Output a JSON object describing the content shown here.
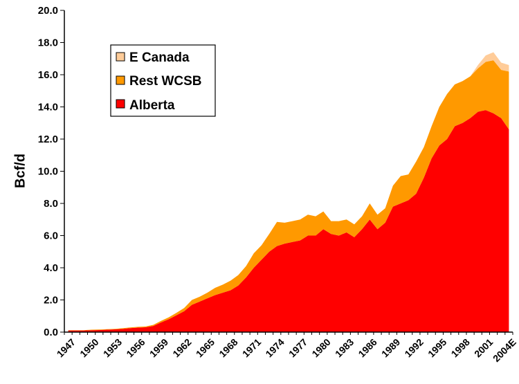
{
  "chart_data": {
    "type": "area",
    "stacked": true,
    "title": "",
    "xlabel": "",
    "ylabel": "Bcf/d",
    "ylim": [
      0,
      20
    ],
    "y_ticks": [
      "0.0",
      "2.0",
      "4.0",
      "6.0",
      "8.0",
      "10.0",
      "12.0",
      "14.0",
      "16.0",
      "18.0",
      "20.0"
    ],
    "x_tick_labels": [
      "1947",
      "1950",
      "1953",
      "1956",
      "1959",
      "1962",
      "1965",
      "1968",
      "1971",
      "1974",
      "1977",
      "1980",
      "1983",
      "1986",
      "1989",
      "1992",
      "1995",
      "1998",
      "2001",
      "2004E"
    ],
    "grid": false,
    "legend_position": "top-left",
    "x": [
      "1947",
      "1948",
      "1949",
      "1950",
      "1951",
      "1952",
      "1953",
      "1954",
      "1955",
      "1956",
      "1957",
      "1958",
      "1959",
      "1960",
      "1961",
      "1962",
      "1963",
      "1964",
      "1965",
      "1966",
      "1967",
      "1968",
      "1969",
      "1970",
      "1971",
      "1972",
      "1973",
      "1974",
      "1975",
      "1976",
      "1977",
      "1978",
      "1979",
      "1980",
      "1981",
      "1982",
      "1983",
      "1984",
      "1985",
      "1986",
      "1987",
      "1988",
      "1989",
      "1990",
      "1991",
      "1992",
      "1993",
      "1994",
      "1995",
      "1996",
      "1997",
      "1998",
      "1999",
      "2000",
      "2001",
      "2002",
      "2003",
      "2004E"
    ],
    "series": [
      {
        "name": "Alberta",
        "color": "#ff0000",
        "values": [
          0.1,
          0.1,
          0.1,
          0.12,
          0.13,
          0.15,
          0.17,
          0.2,
          0.25,
          0.28,
          0.3,
          0.38,
          0.6,
          0.8,
          1.05,
          1.3,
          1.7,
          1.9,
          2.1,
          2.3,
          2.45,
          2.6,
          2.9,
          3.4,
          4.0,
          4.5,
          5.0,
          5.35,
          5.5,
          5.6,
          5.7,
          6.0,
          6.0,
          6.4,
          6.1,
          6.0,
          6.2,
          5.9,
          6.4,
          7.0,
          6.4,
          6.8,
          7.8,
          8.0,
          8.2,
          8.6,
          9.6,
          10.8,
          11.6,
          12.0,
          12.8,
          13.0,
          13.3,
          13.7,
          13.8,
          13.6,
          13.3,
          12.6
        ]
      },
      {
        "name": "Rest WCSB",
        "color": "#ff9900",
        "values": [
          0.02,
          0.02,
          0.02,
          0.03,
          0.03,
          0.03,
          0.03,
          0.04,
          0.04,
          0.05,
          0.05,
          0.07,
          0.1,
          0.12,
          0.15,
          0.2,
          0.3,
          0.3,
          0.35,
          0.45,
          0.5,
          0.6,
          0.65,
          0.7,
          0.9,
          0.9,
          1.1,
          1.5,
          1.3,
          1.3,
          1.3,
          1.3,
          1.2,
          1.1,
          0.8,
          0.9,
          0.8,
          0.8,
          0.8,
          1.0,
          0.9,
          0.9,
          1.3,
          1.7,
          1.6,
          2.0,
          1.9,
          2.0,
          2.4,
          2.8,
          2.6,
          2.6,
          2.6,
          2.7,
          3.0,
          3.3,
          3.0,
          3.6
        ]
      },
      {
        "name": "E Canada",
        "color": "#ffcc99",
        "values": [
          0,
          0,
          0,
          0,
          0,
          0,
          0,
          0,
          0,
          0,
          0,
          0,
          0,
          0,
          0,
          0,
          0,
          0,
          0,
          0,
          0,
          0,
          0,
          0,
          0,
          0,
          0,
          0,
          0,
          0,
          0,
          0,
          0,
          0,
          0,
          0,
          0,
          0,
          0,
          0,
          0,
          0,
          0,
          0,
          0,
          0,
          0,
          0,
          0,
          0,
          0,
          0,
          0,
          0.2,
          0.4,
          0.5,
          0.45,
          0.4
        ]
      }
    ],
    "legend": [
      "E Canada",
      "Rest WCSB",
      "Alberta"
    ]
  }
}
